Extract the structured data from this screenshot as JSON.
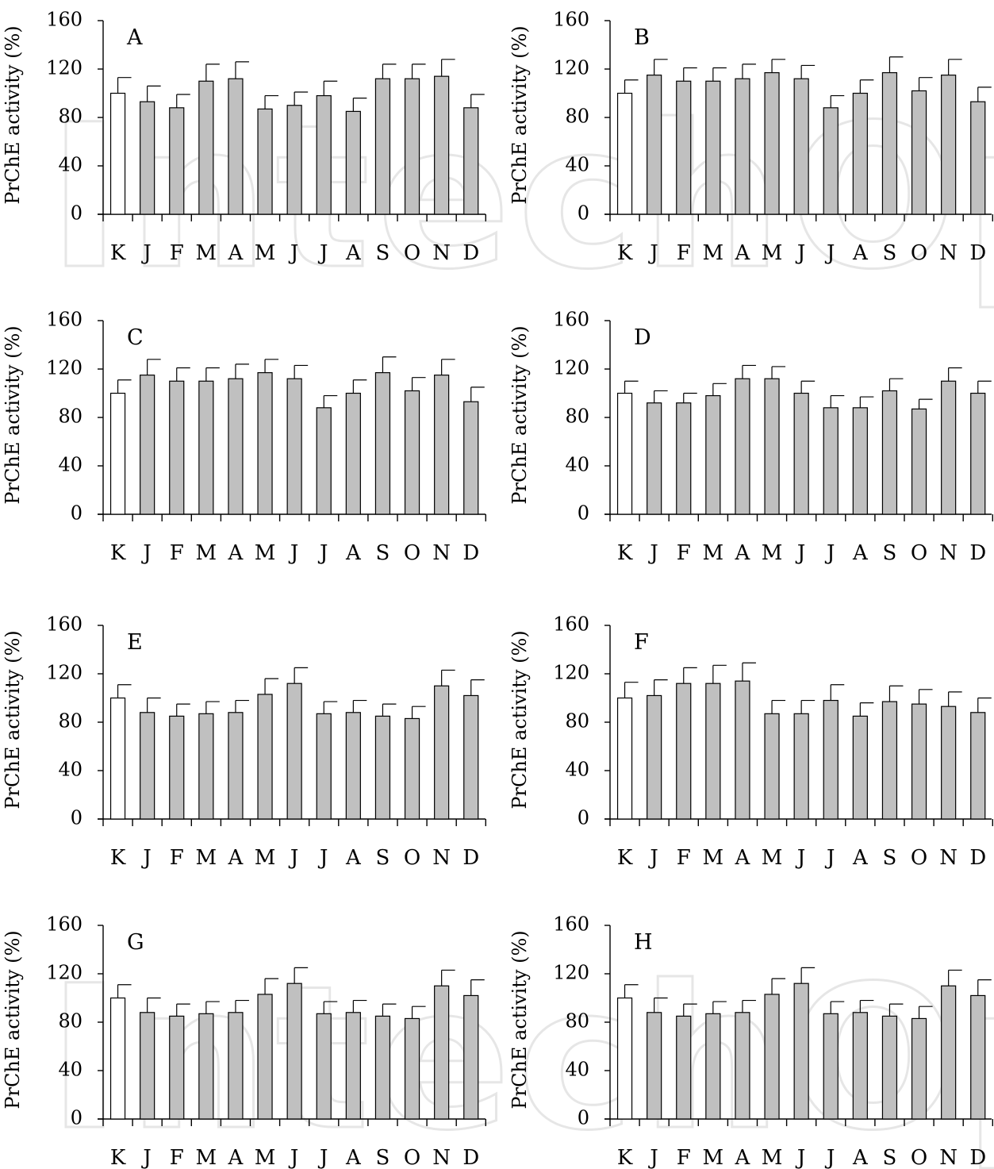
{
  "watermark": {
    "text": "IntechOpen"
  },
  "styles": {
    "control_fill": "#ffffff",
    "sample_fill": "#c0c0c0",
    "stroke": "#000000"
  },
  "chart_data": [
    {
      "type": "bar",
      "title": "A",
      "ylabel": "PrChE activity (%)",
      "ylim": [
        0,
        160
      ],
      "yticks": [
        0,
        40,
        80,
        120,
        160
      ],
      "categories": [
        "K",
        "J",
        "F",
        "M",
        "A",
        "M",
        "J",
        "J",
        "A",
        "S",
        "O",
        "N",
        "D"
      ],
      "values": [
        100,
        93,
        88,
        110,
        112,
        87,
        90,
        98,
        85,
        112,
        112,
        114,
        88
      ],
      "errors": [
        13,
        13,
        11,
        14,
        14,
        11,
        11,
        12,
        11,
        12,
        12,
        14,
        11
      ]
    },
    {
      "type": "bar",
      "title": "B",
      "ylabel": "PrChE activity (%)",
      "ylim": [
        0,
        160
      ],
      "yticks": [
        0,
        40,
        80,
        120,
        160
      ],
      "categories": [
        "K",
        "J",
        "F",
        "M",
        "A",
        "M",
        "J",
        "J",
        "A",
        "S",
        "O",
        "N",
        "D"
      ],
      "values": [
        100,
        115,
        110,
        110,
        112,
        117,
        112,
        88,
        100,
        117,
        102,
        115,
        93
      ],
      "errors": [
        11,
        13,
        11,
        11,
        12,
        11,
        11,
        10,
        11,
        13,
        11,
        13,
        12
      ]
    },
    {
      "type": "bar",
      "title": "C",
      "ylabel": "PrChE activity (%)",
      "ylim": [
        0,
        160
      ],
      "yticks": [
        0,
        40,
        80,
        120,
        160
      ],
      "categories": [
        "K",
        "J",
        "F",
        "M",
        "A",
        "M",
        "J",
        "J",
        "A",
        "S",
        "O",
        "N",
        "D"
      ],
      "values": [
        100,
        115,
        110,
        110,
        112,
        117,
        112,
        88,
        100,
        117,
        102,
        115,
        93
      ],
      "errors": [
        11,
        13,
        11,
        11,
        12,
        11,
        11,
        10,
        11,
        13,
        11,
        13,
        12
      ]
    },
    {
      "type": "bar",
      "title": "D",
      "ylabel": "PrChE activity (%)",
      "ylim": [
        0,
        160
      ],
      "yticks": [
        0,
        40,
        80,
        120,
        160
      ],
      "categories": [
        "K",
        "J",
        "F",
        "M",
        "A",
        "M",
        "J",
        "J",
        "A",
        "S",
        "O",
        "N",
        "D"
      ],
      "values": [
        100,
        92,
        92,
        98,
        112,
        112,
        100,
        88,
        88,
        102,
        87,
        110,
        100
      ],
      "errors": [
        10,
        10,
        8,
        10,
        11,
        10,
        10,
        10,
        9,
        10,
        8,
        11,
        10
      ]
    },
    {
      "type": "bar",
      "title": "E",
      "ylabel": "PrChE activity (%)",
      "ylim": [
        0,
        160
      ],
      "yticks": [
        0,
        40,
        80,
        120,
        160
      ],
      "categories": [
        "K",
        "J",
        "F",
        "M",
        "A",
        "M",
        "J",
        "J",
        "A",
        "S",
        "O",
        "N",
        "D"
      ],
      "values": [
        100,
        88,
        85,
        87,
        88,
        103,
        112,
        87,
        88,
        85,
        83,
        110,
        102
      ],
      "errors": [
        11,
        12,
        10,
        10,
        10,
        13,
        13,
        10,
        10,
        10,
        10,
        13,
        13
      ]
    },
    {
      "type": "bar",
      "title": "F",
      "ylabel": "PrChE activity (%)",
      "ylim": [
        0,
        160
      ],
      "yticks": [
        0,
        40,
        80,
        120,
        160
      ],
      "categories": [
        "K",
        "J",
        "F",
        "M",
        "A",
        "M",
        "J",
        "J",
        "A",
        "S",
        "O",
        "N",
        "D"
      ],
      "values": [
        100,
        102,
        112,
        112,
        114,
        87,
        87,
        98,
        85,
        97,
        95,
        93,
        88
      ],
      "errors": [
        13,
        13,
        13,
        15,
        15,
        11,
        11,
        13,
        11,
        13,
        12,
        12,
        12
      ]
    },
    {
      "type": "bar",
      "title": "G",
      "ylabel": "PrChE activity (%)",
      "ylim": [
        0,
        160
      ],
      "yticks": [
        0,
        40,
        80,
        120,
        160
      ],
      "categories": [
        "K",
        "J",
        "F",
        "M",
        "A",
        "M",
        "J",
        "J",
        "A",
        "S",
        "O",
        "N",
        "D"
      ],
      "values": [
        100,
        88,
        85,
        87,
        88,
        103,
        112,
        87,
        88,
        85,
        83,
        110,
        102
      ],
      "errors": [
        11,
        12,
        10,
        10,
        10,
        13,
        13,
        10,
        10,
        10,
        10,
        13,
        13
      ]
    },
    {
      "type": "bar",
      "title": "H",
      "ylabel": "PrChE activity (%)",
      "ylim": [
        0,
        160
      ],
      "yticks": [
        0,
        40,
        80,
        120,
        160
      ],
      "categories": [
        "K",
        "J",
        "F",
        "M",
        "A",
        "M",
        "J",
        "J",
        "A",
        "S",
        "O",
        "N",
        "D"
      ],
      "values": [
        100,
        88,
        85,
        87,
        88,
        103,
        112,
        87,
        88,
        85,
        83,
        110,
        102
      ],
      "errors": [
        11,
        12,
        10,
        10,
        10,
        13,
        13,
        10,
        10,
        10,
        10,
        13,
        13
      ]
    }
  ]
}
